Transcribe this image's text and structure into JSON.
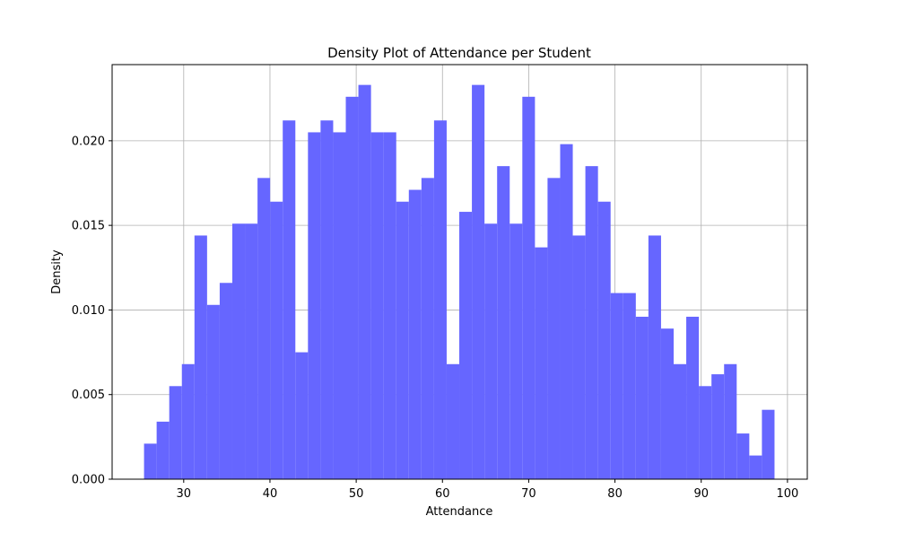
{
  "chart_data": {
    "type": "bar",
    "title": "Density Plot of Attendance per Student",
    "xlabel": "Attendance",
    "ylabel": "Density",
    "xlim": [
      21.7,
      102.3
    ],
    "ylim": [
      0,
      0.0245
    ],
    "x_ticks": [
      30,
      40,
      50,
      60,
      70,
      80,
      90,
      100
    ],
    "x_tick_labels": [
      "30",
      "40",
      "50",
      "60",
      "70",
      "80",
      "90",
      "100"
    ],
    "y_ticks": [
      0,
      0.005,
      0.01,
      0.015,
      0.02
    ],
    "y_tick_labels": [
      "0.000",
      "0.005",
      "0.010",
      "0.015",
      "0.020"
    ],
    "grid": true,
    "bar_color": "#6666ff",
    "bin_start": 25.4,
    "bin_width": 1.462,
    "values": [
      0.0021,
      0.0034,
      0.0055,
      0.0068,
      0.0144,
      0.0103,
      0.0116,
      0.0151,
      0.0151,
      0.0178,
      0.0164,
      0.0212,
      0.0075,
      0.0205,
      0.0212,
      0.0205,
      0.0226,
      0.0233,
      0.0205,
      0.0205,
      0.0164,
      0.0171,
      0.0178,
      0.0212,
      0.0068,
      0.0158,
      0.0233,
      0.0151,
      0.0185,
      0.0151,
      0.0226,
      0.0137,
      0.0178,
      0.0198,
      0.0144,
      0.0185,
      0.0164,
      0.011,
      0.011,
      0.0096,
      0.0144,
      0.0089,
      0.0068,
      0.0096,
      0.0055,
      0.0062,
      0.0068,
      0.0027,
      0.0014,
      0.0041
    ]
  }
}
